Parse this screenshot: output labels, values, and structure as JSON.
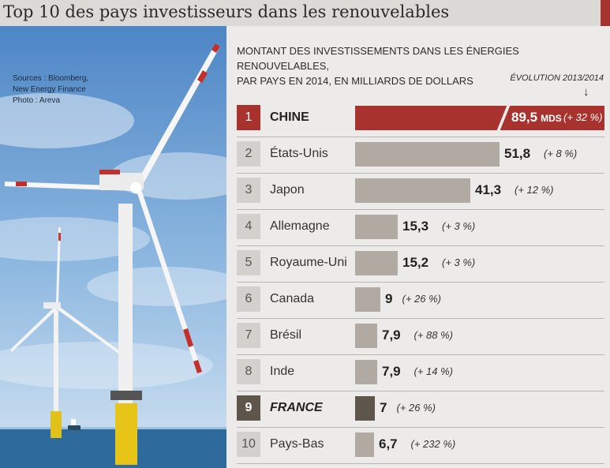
{
  "header": {
    "title": "Top 10 des pays investisseurs dans les renouvelables"
  },
  "photo": {
    "sources_line1": "Sources : Bloomberg,",
    "sources_line2": "New Energy Finance",
    "credit": "Photo : Areva"
  },
  "chart": {
    "subtitle_line1": "Montant des investissements dans les énergies renouvelables,",
    "subtitle_line2": "par pays en 2014, en milliards de dollars",
    "evolution_label": "ÉVOLUTION 2013/2014",
    "arrow": "↓"
  },
  "colors": {
    "highlight": "#a8322d",
    "france": "#5e554b",
    "bar": "#b0aaa3",
    "background": "#ecebe9"
  },
  "chart_data": {
    "type": "bar",
    "orientation": "horizontal",
    "ranks": [
      "1",
      "2",
      "3",
      "4",
      "5",
      "6",
      "7",
      "8",
      "9",
      "10"
    ],
    "categories": [
      "CHINE",
      "États-Unis",
      "Japon",
      "Allemagne",
      "Royaume-Uni",
      "Canada",
      "Brésil",
      "Inde",
      "FRANCE",
      "Pays-Bas"
    ],
    "values": [
      89.5,
      51.8,
      41.3,
      15.3,
      15.2,
      9,
      7.9,
      7.9,
      7,
      6.7
    ],
    "value_labels": [
      "89,5",
      "51,8",
      "41,3",
      "15,3",
      "15,2",
      "9",
      "7,9",
      "7,9",
      "7",
      "6,7"
    ],
    "value_unit_first": "MDS",
    "evolution": [
      "(+ 32 %)",
      "(+ 8 %)",
      "(+ 12 %)",
      "(+ 3 %)",
      "(+ 3 %)",
      "(+ 26 %)",
      "(+ 88 %)",
      "(+ 14 %)",
      "(+ 26 %)",
      "(+ 232 %)"
    ],
    "evolution_pct": [
      32,
      8,
      12,
      3,
      3,
      26,
      88,
      14,
      26,
      232
    ],
    "xlim": [
      0,
      89.5
    ]
  }
}
